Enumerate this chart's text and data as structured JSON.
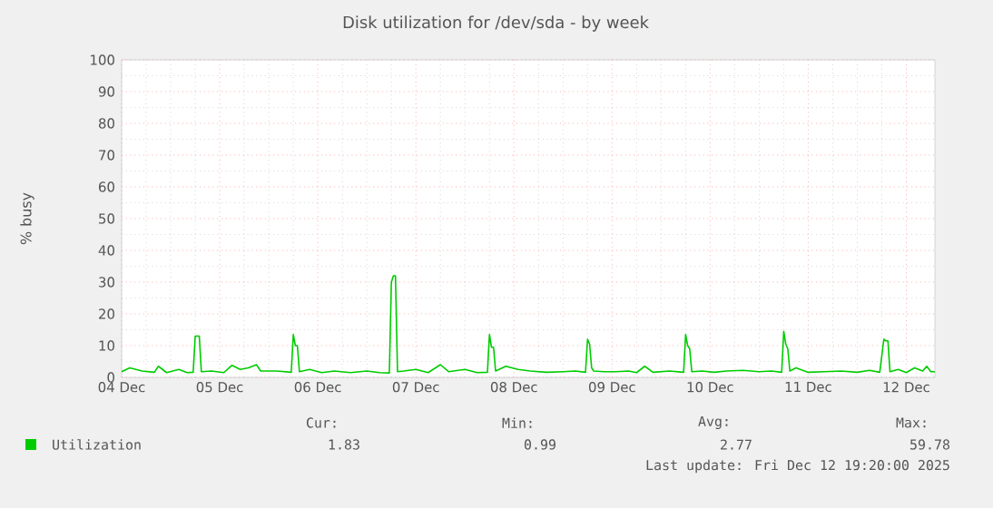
{
  "chart_data": {
    "type": "line",
    "title": "Disk utilization for /dev/sda - by week",
    "ylabel": "% busy",
    "xlim": [
      "2025-12-04T00:00",
      "2025-12-12T07:00"
    ],
    "ylim": [
      0,
      100
    ],
    "xticks": [
      {
        "value": "2025-12-04",
        "label": "04 Dec"
      },
      {
        "value": "2025-12-05",
        "label": "05 Dec"
      },
      {
        "value": "2025-12-06",
        "label": "06 Dec"
      },
      {
        "value": "2025-12-07",
        "label": "07 Dec"
      },
      {
        "value": "2025-12-08",
        "label": "08 Dec"
      },
      {
        "value": "2025-12-09",
        "label": "09 Dec"
      },
      {
        "value": "2025-12-10",
        "label": "10 Dec"
      },
      {
        "value": "2025-12-11",
        "label": "11 Dec"
      },
      {
        "value": "2025-12-12",
        "label": "12 Dec"
      }
    ],
    "yticks": [
      0,
      10,
      20,
      30,
      40,
      50,
      60,
      70,
      80,
      90,
      100
    ],
    "grid": true,
    "legend": "bottom",
    "series": [
      {
        "name": "Utilization",
        "color": "#00cc00",
        "x": [
          "2025-12-04T00:00",
          "2025-12-04T02:00",
          "2025-12-04T05:00",
          "2025-12-04T08:00",
          "2025-12-04T09:00",
          "2025-12-04T11:00",
          "2025-12-04T14:00",
          "2025-12-04T16:00",
          "2025-12-04T17:30",
          "2025-12-04T18:00",
          "2025-12-04T19:00",
          "2025-12-04T19:30",
          "2025-12-04T22:00",
          "2025-12-05T01:00",
          "2025-12-05T03:00",
          "2025-12-05T05:00",
          "2025-12-05T07:00",
          "2025-12-05T09:00",
          "2025-12-05T10:00",
          "2025-12-05T14:00",
          "2025-12-05T17:30",
          "2025-12-05T18:00",
          "2025-12-05T18:30",
          "2025-12-05T19:00",
          "2025-12-05T19:30",
          "2025-12-05T22:00",
          "2025-12-06T01:00",
          "2025-12-06T04:00",
          "2025-12-06T08:00",
          "2025-12-06T12:00",
          "2025-12-06T15:00",
          "2025-12-06T17:30",
          "2025-12-06T18:00",
          "2025-12-06T18:30",
          "2025-12-06T19:00",
          "2025-12-06T19:30",
          "2025-12-06T21:00",
          "2025-12-07T00:00",
          "2025-12-07T03:00",
          "2025-12-07T06:00",
          "2025-12-07T08:00",
          "2025-12-07T12:00",
          "2025-12-07T15:00",
          "2025-12-07T17:30",
          "2025-12-07T18:00",
          "2025-12-07T18:30",
          "2025-12-07T19:00",
          "2025-12-07T19:30",
          "2025-12-07T22:00",
          "2025-12-08T01:00",
          "2025-12-08T04:00",
          "2025-12-08T08:00",
          "2025-12-08T12:00",
          "2025-12-08T15:00",
          "2025-12-08T17:30",
          "2025-12-08T18:00",
          "2025-12-08T18:30",
          "2025-12-08T19:00",
          "2025-12-08T19:30",
          "2025-12-08T22:00",
          "2025-12-09T01:00",
          "2025-12-09T04:00",
          "2025-12-09T06:00",
          "2025-12-09T08:00",
          "2025-12-09T10:00",
          "2025-12-09T14:00",
          "2025-12-09T17:30",
          "2025-12-09T18:00",
          "2025-12-09T18:30",
          "2025-12-09T19:00",
          "2025-12-09T19:30",
          "2025-12-09T22:00",
          "2025-12-10T01:00",
          "2025-12-10T04:00",
          "2025-12-10T08:00",
          "2025-12-10T12:00",
          "2025-12-10T15:00",
          "2025-12-10T17:30",
          "2025-12-10T18:00",
          "2025-12-10T18:30",
          "2025-12-10T19:00",
          "2025-12-10T19:30",
          "2025-12-10T21:00",
          "2025-12-11T00:00",
          "2025-12-11T04:00",
          "2025-12-11T08:00",
          "2025-12-11T12:00",
          "2025-12-11T15:00",
          "2025-12-11T17:30",
          "2025-12-11T18:30",
          "2025-12-11T19:00",
          "2025-12-11T19:30",
          "2025-12-11T20:00",
          "2025-12-11T22:00",
          "2025-12-12T00:00",
          "2025-12-12T02:00",
          "2025-12-12T04:00",
          "2025-12-12T05:00",
          "2025-12-12T06:00",
          "2025-12-12T07:00"
        ],
        "values": [
          1.8,
          3.0,
          2.0,
          1.6,
          3.5,
          1.5,
          2.5,
          1.5,
          1.6,
          13,
          13,
          1.8,
          2.0,
          1.5,
          3.8,
          2.5,
          3.0,
          4.0,
          2.0,
          2.0,
          1.6,
          13.5,
          10,
          10,
          1.8,
          2.5,
          1.5,
          2.0,
          1.5,
          2.0,
          1.5,
          1.4,
          30,
          32,
          32,
          1.8,
          2.0,
          2.5,
          1.5,
          4.0,
          1.8,
          2.5,
          1.5,
          1.6,
          13.5,
          9.5,
          9.5,
          2.0,
          3.5,
          2.5,
          2.0,
          1.6,
          1.8,
          2.0,
          1.6,
          12,
          10.5,
          3.0,
          2.0,
          1.8,
          1.8,
          2.0,
          1.5,
          3.5,
          1.6,
          2.0,
          1.6,
          13.5,
          10,
          9,
          1.8,
          2.0,
          1.6,
          2.0,
          2.2,
          1.8,
          2.0,
          1.6,
          14.5,
          10.5,
          9,
          2.0,
          3.0,
          1.6,
          1.8,
          2.0,
          1.6,
          2.2,
          1.6,
          12,
          11.5,
          11.5,
          1.8,
          2.5,
          1.5,
          3.0,
          2.0,
          3.5,
          1.8,
          1.8
        ]
      }
    ],
    "annotations": [
      "Cur:",
      "Min:",
      "Avg:",
      "Max:",
      "1.83",
      "0.99",
      "2.77",
      "59.78",
      "Last update: Fri Dec 12 19:20:00 2025"
    ]
  }
}
